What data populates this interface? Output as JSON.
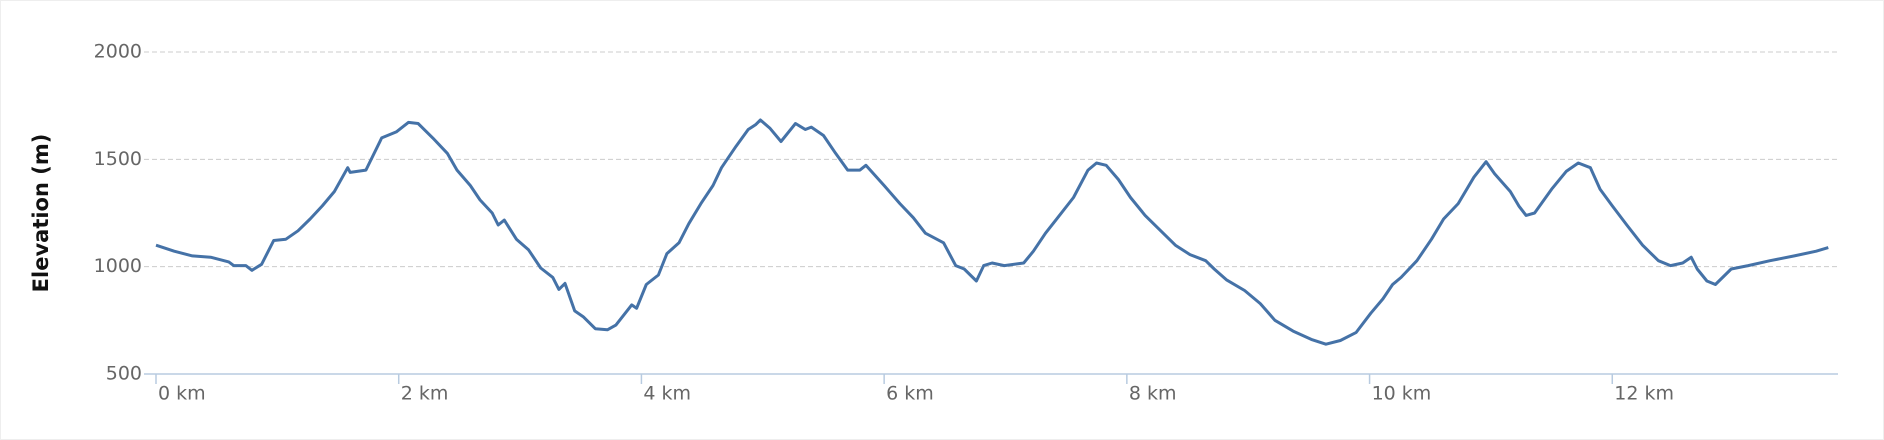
{
  "chart_data": {
    "type": "line",
    "y_label": "Elevation (m)",
    "color": "#4572a7",
    "grid": true,
    "xlim": [
      0,
      13.86
    ],
    "ylim": [
      500,
      2000
    ],
    "xticks": [
      {
        "value": 0,
        "label": "0 km"
      },
      {
        "value": 2,
        "label": "2 km"
      },
      {
        "value": 4,
        "label": "4 km"
      },
      {
        "value": 6,
        "label": "6 km"
      },
      {
        "value": 8,
        "label": "8 km"
      },
      {
        "value": 10,
        "label": "10 km"
      },
      {
        "value": 12,
        "label": "12 km"
      }
    ],
    "yticks": [
      500,
      1000,
      1500,
      2000
    ],
    "x": [
      0,
      0.15,
      0.3,
      0.45,
      0.6,
      0.64,
      0.74,
      0.79,
      0.87,
      0.97,
      1.07,
      1.17,
      1.27,
      1.37,
      1.47,
      1.58,
      1.6,
      1.73,
      1.86,
      1.98,
      2.08,
      2.16,
      2.28,
      2.4,
      2.48,
      2.59,
      2.67,
      2.77,
      2.82,
      2.87,
      2.97,
      3.07,
      3.17,
      3.27,
      3.32,
      3.37,
      3.45,
      3.52,
      3.62,
      3.72,
      3.79,
      3.92,
      3.96,
      4.04,
      4.14,
      4.21,
      4.31,
      4.39,
      4.49,
      4.59,
      4.66,
      4.78,
      4.88,
      4.94,
      4.98,
      5.06,
      5.15,
      5.27,
      5.35,
      5.4,
      5.5,
      5.6,
      5.7,
      5.8,
      5.85,
      6.0,
      6.13,
      6.24,
      6.34,
      6.49,
      6.59,
      6.66,
      6.76,
      6.82,
      6.89,
      6.99,
      7.15,
      7.23,
      7.33,
      7.43,
      7.56,
      7.68,
      7.75,
      7.83,
      7.93,
      8.03,
      8.15,
      8.27,
      8.4,
      8.52,
      8.65,
      8.72,
      8.82,
      8.97,
      9.1,
      9.22,
      9.37,
      9.52,
      9.64,
      9.76,
      9.89,
      10.01,
      10.11,
      10.19,
      10.26,
      10.39,
      10.51,
      10.61,
      10.73,
      10.86,
      10.96,
      11.03,
      11.16,
      11.23,
      11.29,
      11.36,
      11.5,
      11.62,
      11.72,
      11.82,
      11.9,
      12.0,
      12.12,
      12.25,
      12.38,
      12.48,
      12.58,
      12.65,
      12.7,
      12.78,
      12.85,
      12.98,
      13.12,
      13.3,
      13.5,
      13.68,
      13.78
    ],
    "values": [
      1100,
      1072,
      1050,
      1044,
      1022,
      1005,
      1005,
      983,
      1011,
      1122,
      1128,
      1167,
      1222,
      1283,
      1350,
      1461,
      1439,
      1450,
      1600,
      1628,
      1672,
      1667,
      1600,
      1528,
      1450,
      1378,
      1311,
      1250,
      1194,
      1217,
      1128,
      1078,
      994,
      950,
      894,
      922,
      794,
      767,
      711,
      706,
      728,
      822,
      806,
      917,
      961,
      1061,
      1111,
      1200,
      1294,
      1378,
      1461,
      1561,
      1639,
      1661,
      1683,
      1644,
      1583,
      1667,
      1639,
      1650,
      1611,
      1528,
      1450,
      1450,
      1472,
      1378,
      1294,
      1228,
      1156,
      1111,
      1005,
      989,
      933,
      1005,
      1017,
      1005,
      1017,
      1072,
      1156,
      1228,
      1322,
      1450,
      1483,
      1472,
      1406,
      1322,
      1239,
      1172,
      1100,
      1056,
      1028,
      989,
      939,
      889,
      828,
      750,
      700,
      661,
      639,
      656,
      694,
      783,
      850,
      917,
      950,
      1028,
      1128,
      1222,
      1294,
      1417,
      1489,
      1433,
      1350,
      1283,
      1239,
      1250,
      1361,
      1444,
      1483,
      1461,
      1361,
      1283,
      1194,
      1100,
      1028,
      1005,
      1017,
      1044,
      989,
      933,
      917,
      989,
      1005,
      1028,
      1050,
      1072,
      1089
    ]
  }
}
